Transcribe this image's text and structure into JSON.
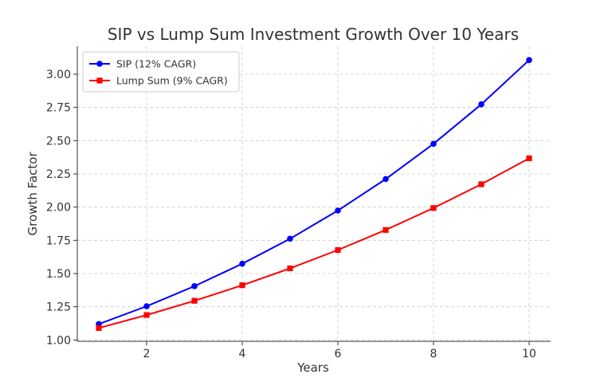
{
  "chart_data": {
    "type": "line",
    "title": "SIP vs Lump Sum Investment Growth Over 10 Years",
    "xlabel": "Years",
    "ylabel": "Growth Factor",
    "x": [
      1,
      2,
      3,
      4,
      5,
      6,
      7,
      8,
      9,
      10
    ],
    "xlim": [
      0.55,
      10.45
    ],
    "ylim": [
      0.99,
      3.21
    ],
    "xticks": [
      2,
      4,
      6,
      8,
      10
    ],
    "yticks": [
      1.0,
      1.25,
      1.5,
      1.75,
      2.0,
      2.25,
      2.5,
      2.75,
      3.0
    ],
    "grid": true,
    "legend_position": "top-left",
    "series": [
      {
        "name": "SIP (12% CAGR)",
        "color": "#0000ff",
        "marker": "circle",
        "values": [
          1.12,
          1.254,
          1.405,
          1.574,
          1.762,
          1.974,
          2.211,
          2.476,
          2.773,
          3.106
        ]
      },
      {
        "name": "Lump Sum (9% CAGR)",
        "color": "#ff0000",
        "marker": "square",
        "values": [
          1.09,
          1.188,
          1.295,
          1.412,
          1.539,
          1.677,
          1.828,
          1.993,
          2.172,
          2.367
        ]
      }
    ]
  }
}
